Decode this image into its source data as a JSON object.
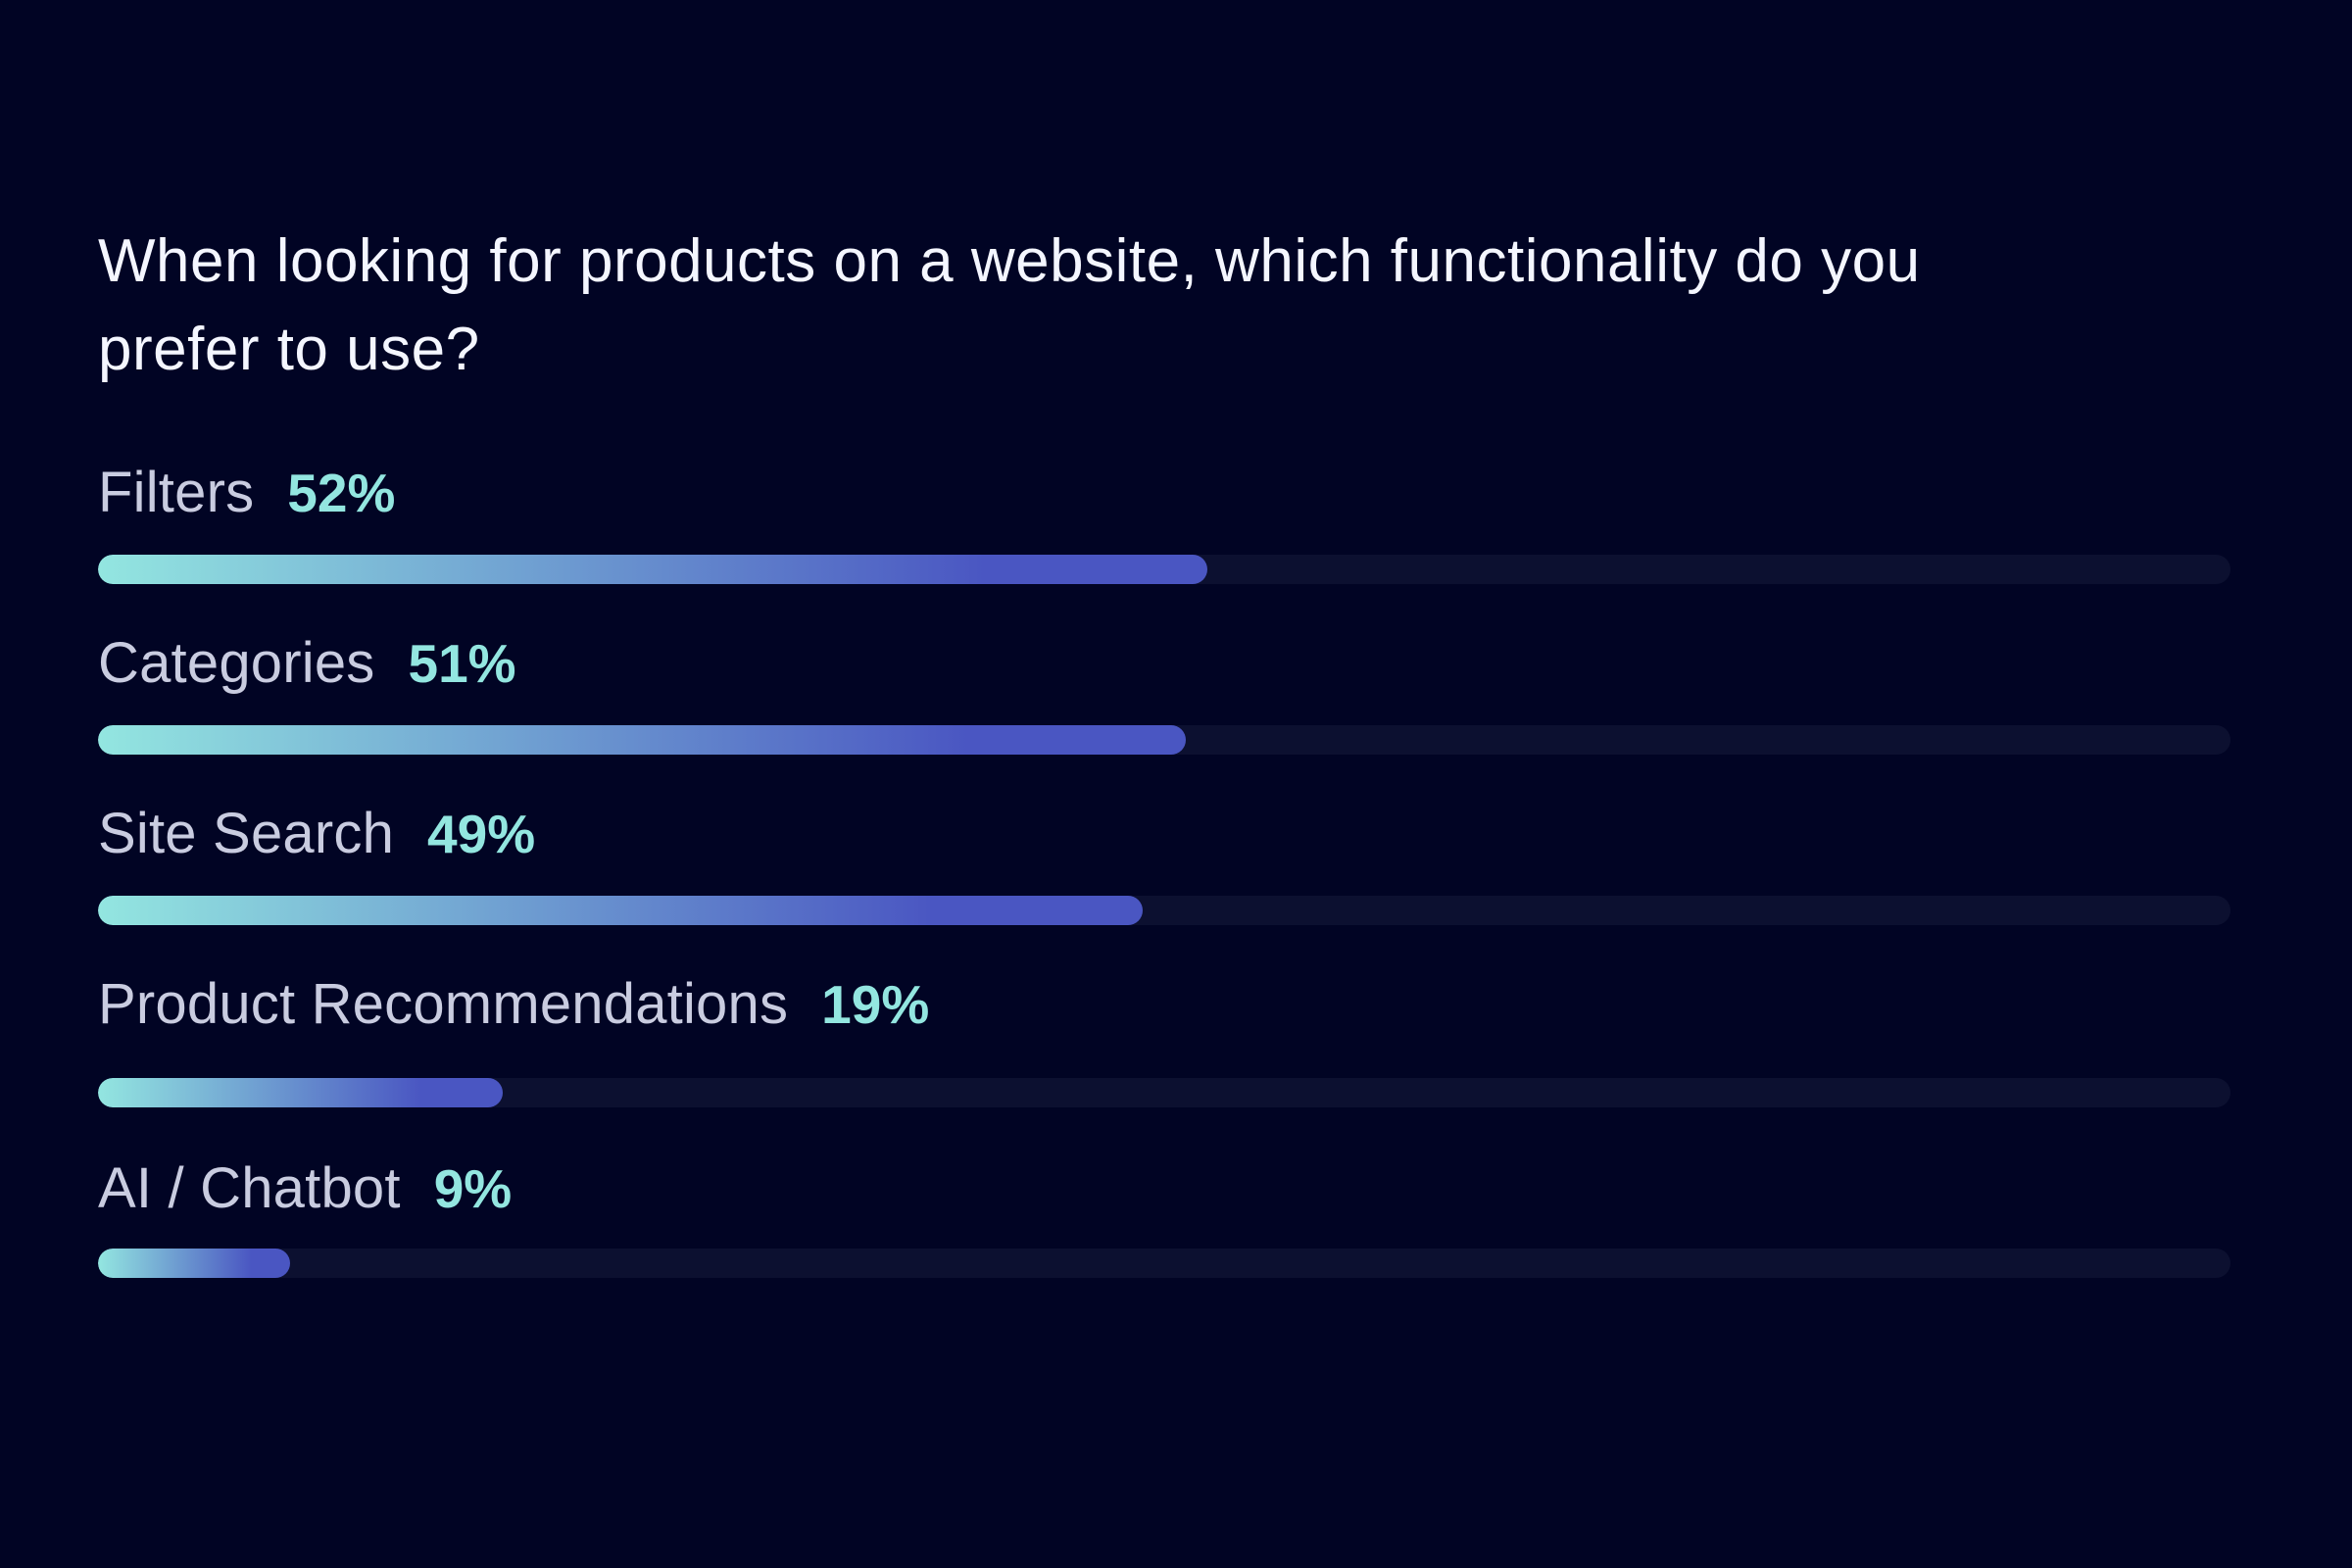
{
  "colors": {
    "background": "#010424",
    "title_text": "#f4f6ff",
    "label_text": "#c9cce0",
    "value_text": "#93e6e0",
    "track": "#0c1030",
    "fill_start": "#93e6e0",
    "fill_end": "#4a56c2"
  },
  "chart_data": {
    "type": "bar",
    "orientation": "horizontal",
    "title": "When looking for products on a website, which functionality do you prefer to use?",
    "categories": [
      "Filters",
      "Categories",
      "Site Search",
      "Product Recommendations",
      "AI / Chatbot"
    ],
    "values": [
      52,
      51,
      49,
      19,
      9
    ],
    "value_labels": [
      "52%",
      "51%",
      "49%",
      "19%",
      "9%"
    ],
    "unit": "%",
    "xlim": [
      0,
      100
    ],
    "grid": false,
    "legend": "none"
  }
}
